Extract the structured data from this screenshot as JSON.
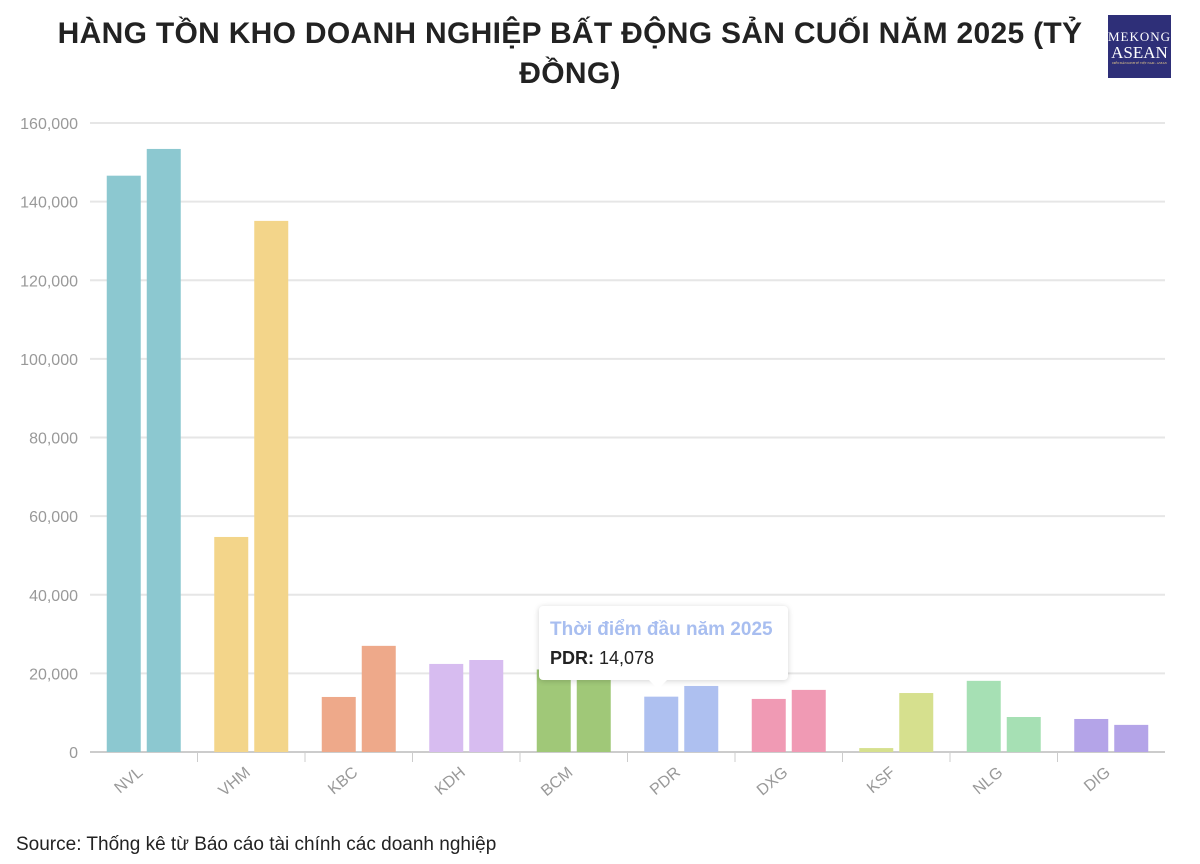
{
  "title": "HÀNG TỒN KHO DOANH NGHIỆP BẤT ĐỘNG SẢN CUỐI NĂM 2025 (TỶ ĐỒNG)",
  "logo": {
    "line1": "MEKONG",
    "line2": "ASEAN",
    "tagline": "DIỄN ĐÀN KINH TẾ VIỆT NAM - ASEAN"
  },
  "source": "Source: Thống kê từ Báo cáo tài chính các doanh nghiệp",
  "tooltip": {
    "series": "Thời điểm đầu năm 2025",
    "label": "PDR:",
    "value": "14,078"
  },
  "chart_data": {
    "type": "bar",
    "title": "HÀNG TỒN KHO DOANH NGHIỆP BẤT ĐỘNG SẢN CUỐI NĂM 2025 (TỶ ĐỒNG)",
    "categories": [
      "NVL",
      "VHM",
      "KBC",
      "KDH",
      "BCM",
      "PDR",
      "DXG",
      "KSF",
      "NLG",
      "DIG"
    ],
    "colors": [
      "#8cc8d0",
      "#f3d58a",
      "#eea98a",
      "#d7bcf0",
      "#a0c878",
      "#aec0f0",
      "#f09ab4",
      "#d6e08e",
      "#a6e0b4",
      "#b4a4e8"
    ],
    "series": [
      {
        "name": "Thời điểm đầu năm 2025",
        "values": [
          146600,
          54700,
          14000,
          22400,
          21000,
          14078,
          13500,
          1000,
          18100,
          8400
        ]
      },
      {
        "values": [
          153400,
          135100,
          27000,
          23400,
          21000,
          16800,
          15800,
          15000,
          8900,
          6900
        ]
      }
    ],
    "yticks": [
      "0",
      "20,000",
      "40,000",
      "60,000",
      "80,000",
      "100,000",
      "120,000",
      "140,000",
      "160,000"
    ],
    "ylim": [
      0,
      160000
    ],
    "grid": true,
    "xlabel": "",
    "ylabel": ""
  }
}
